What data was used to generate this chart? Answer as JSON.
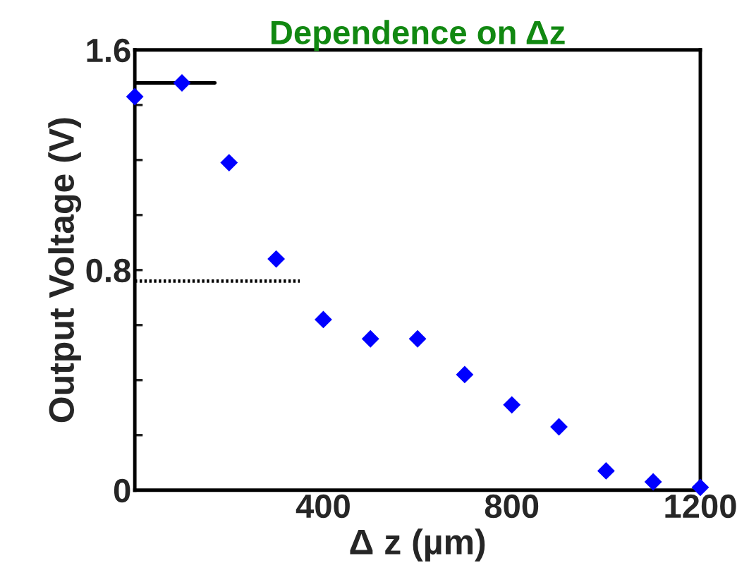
{
  "chart_data": {
    "type": "scatter",
    "title": "Dependence on Δz",
    "xlabel": "Δ z (µm)",
    "ylabel": "Output Voltage (V)",
    "x": [
      0,
      100,
      200,
      300,
      400,
      500,
      600,
      700,
      800,
      900,
      1000,
      1100,
      1200
    ],
    "series": [
      {
        "color": "#0000ff",
        "marker": "diamond",
        "values": [
          1.43,
          1.48,
          1.19,
          0.84,
          0.62,
          0.55,
          0.55,
          0.42,
          0.31,
          0.23,
          0.07,
          0.03,
          0.01
        ]
      },
      {
        "type": "line",
        "color": "#000000",
        "line_style": "solid",
        "marker": "none",
        "x": [
          0,
          170
        ],
        "values": [
          1.48,
          1.48
        ]
      },
      {
        "type": "line",
        "color": "#000000",
        "line_style": "dotted",
        "marker": "none",
        "x": [
          0,
          350
        ],
        "values": [
          0.76,
          0.76
        ]
      }
    ],
    "xlim": [
      0,
      1200
    ],
    "ylim": [
      0,
      1.6
    ],
    "xticks": [
      400,
      800,
      1200
    ],
    "yticks": [
      {
        "value": 0,
        "label": "0"
      },
      {
        "value": 0.2,
        "label": null
      },
      {
        "value": 0.4,
        "label": null
      },
      {
        "value": 0.6,
        "label": null
      },
      0.8,
      {
        "value": 1.0,
        "label": null
      },
      {
        "value": 1.2,
        "label": null
      },
      {
        "value": 1.4,
        "label": null
      },
      1.6
    ],
    "grid": false,
    "legend": false
  }
}
